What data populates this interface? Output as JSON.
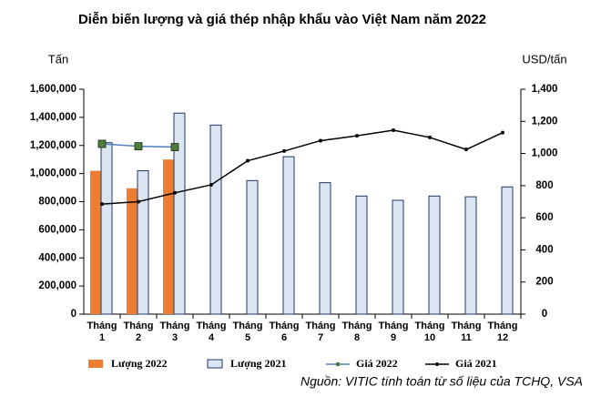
{
  "chart_data": {
    "type": "bar",
    "title": "Diễn biến lượng và giá thép nhập khẩu vào Việt Nam năm 2022",
    "ylabel": "Tấn",
    "y2label": "USD/tấn",
    "source": "Nguồn: VITIC tính toán từ số liệu của TCHQ, VSA",
    "categories": [
      "Tháng 1",
      "Tháng 2",
      "Tháng 3",
      "Tháng 4",
      "Tháng 5",
      "Tháng 6",
      "Tháng 7",
      "Tháng 8",
      "Tháng 9",
      "Tháng 10",
      "Tháng 11",
      "Tháng 12"
    ],
    "series": [
      {
        "name": "Lượng 2022",
        "type": "bar",
        "color": "#ed7d31",
        "values": [
          1020000,
          895000,
          1100000,
          null,
          null,
          null,
          null,
          null,
          null,
          null,
          null,
          null
        ]
      },
      {
        "name": "Lượng 2021",
        "type": "bar",
        "color": "#dce6f2",
        "stroke": "#1f3864",
        "values": [
          1220000,
          1020000,
          1430000,
          1345000,
          950000,
          1120000,
          935000,
          840000,
          810000,
          840000,
          835000,
          905000
        ]
      },
      {
        "name": "Giá 2022",
        "type": "line",
        "axis": "y2",
        "color": "#4f81bd",
        "marker_color": "#4e7d3a",
        "marker": "square",
        "values": [
          1060,
          1045,
          1040,
          null,
          null,
          null,
          null,
          null,
          null,
          null,
          null,
          null
        ]
      },
      {
        "name": "Giá 2021",
        "type": "line",
        "axis": "y2",
        "color": "#000000",
        "marker_color": "#000000",
        "marker": "circle",
        "values": [
          685,
          700,
          755,
          805,
          955,
          1015,
          1080,
          1110,
          1145,
          1100,
          1025,
          1130
        ]
      }
    ],
    "ylim": [
      0,
      1600000
    ],
    "yticks": [
      {
        "value": 0,
        "label": "0"
      },
      {
        "value": 200000,
        "label": "200,000"
      },
      {
        "value": 400000,
        "label": "400,000"
      },
      {
        "value": 600000,
        "label": "600,000"
      },
      {
        "value": 800000,
        "label": "800,000"
      },
      {
        "value": 1000000,
        "label": "1,000,000"
      },
      {
        "value": 1200000,
        "label": "1,200,000"
      },
      {
        "value": 1400000,
        "label": "1,400,000"
      },
      {
        "value": 1600000,
        "label": "1,600,000"
      }
    ],
    "y2lim": [
      0,
      1400
    ],
    "y2ticks": [
      0,
      200,
      400,
      600,
      800,
      {
        "value": 1000,
        "label": "1,000"
      },
      {
        "value": 1200,
        "label": "1,200"
      },
      {
        "value": 1400,
        "label": "1,400"
      }
    ],
    "legend": "bottom"
  }
}
